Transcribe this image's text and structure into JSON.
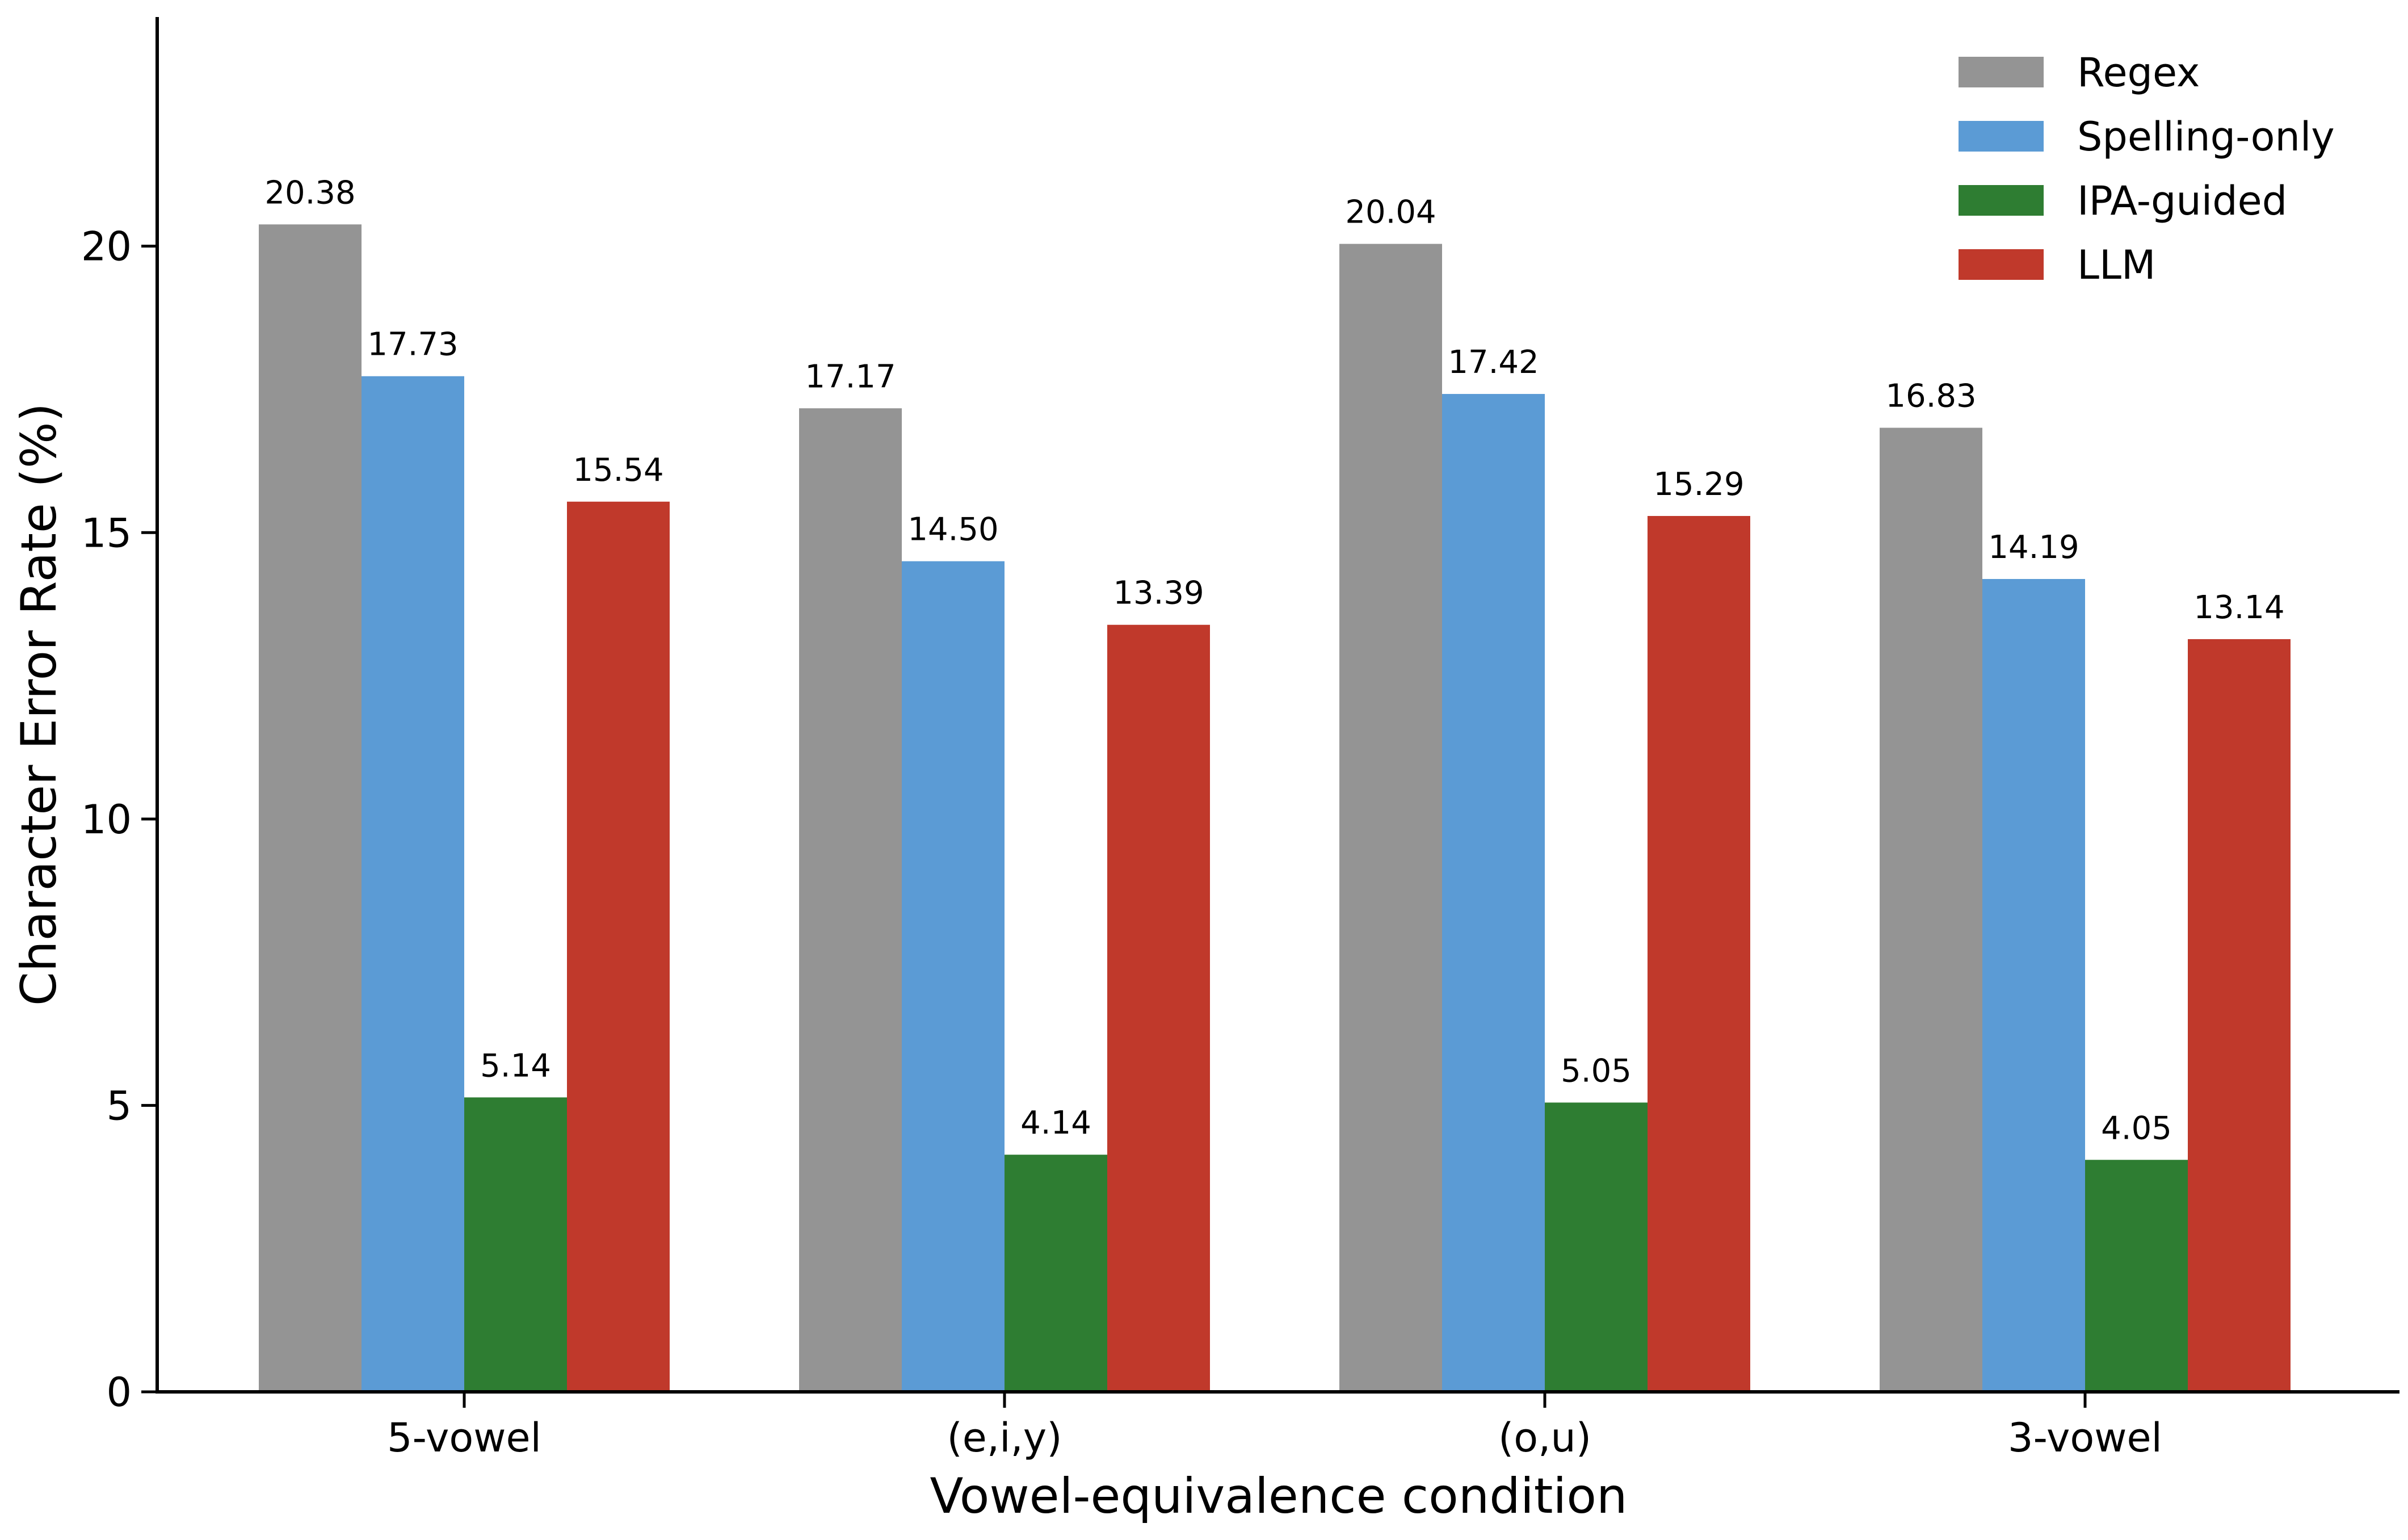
{
  "chart_data": {
    "type": "bar",
    "title": "",
    "xlabel": "Vowel-equivalence condition",
    "ylabel": "Character Error Rate (%)",
    "categories": [
      "5-vowel",
      "(e,i,y)",
      "(o,u)",
      "3-vowel"
    ],
    "series": [
      {
        "name": "Regex",
        "color": "#949494",
        "values": [
          20.38,
          17.17,
          20.04,
          16.83
        ],
        "labels": [
          "20.38",
          "17.17",
          "20.04",
          "16.83"
        ]
      },
      {
        "name": "Spelling-only",
        "color": "#5b9bd5",
        "values": [
          17.73,
          14.5,
          17.42,
          14.19
        ],
        "labels": [
          "17.73",
          "14.50",
          "17.42",
          "14.19"
        ]
      },
      {
        "name": "IPA-guided",
        "color": "#2e7d32",
        "values": [
          5.14,
          4.14,
          5.05,
          4.05
        ],
        "labels": [
          "5.14",
          "4.14",
          "5.05",
          "4.05"
        ]
      },
      {
        "name": "LLM",
        "color": "#c0392b",
        "values": [
          15.54,
          13.39,
          15.29,
          13.14
        ],
        "labels": [
          "15.54",
          "13.39",
          "15.29",
          "13.14"
        ]
      }
    ],
    "ylim": [
      0,
      24
    ],
    "yticks": [
      0,
      5,
      10,
      15,
      20
    ],
    "ytick_labels": [
      "0",
      "5",
      "10",
      "15",
      "20"
    ],
    "grid": false,
    "legend_position": "top-right"
  }
}
